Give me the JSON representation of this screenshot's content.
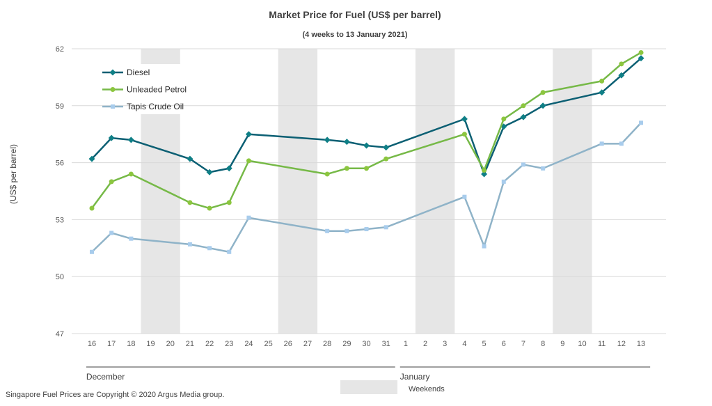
{
  "chart_data": {
    "type": "line",
    "title": "Market Price for Fuel (US$ per barrel)",
    "subtitle": "(4 weeks to 13 January 2021)",
    "ylabel": "(US$ per barrel)",
    "xlabel": "",
    "ylim": [
      47,
      62
    ],
    "yticks": [
      47,
      50,
      53,
      56,
      59,
      62
    ],
    "grid": true,
    "legend_position": "top-left",
    "categories": [
      "16",
      "17",
      "18",
      "19",
      "20",
      "21",
      "22",
      "23",
      "24",
      "25",
      "26",
      "27",
      "28",
      "29",
      "30",
      "31",
      "1",
      "2",
      "3",
      "4",
      "5",
      "6",
      "7",
      "8",
      "9",
      "10",
      "11",
      "12",
      "13"
    ],
    "month_groups": [
      {
        "label": "December",
        "from": 0,
        "to": 15
      },
      {
        "label": "January",
        "from": 16,
        "to": 28
      }
    ],
    "weekend_indices": [
      3,
      4,
      10,
      11,
      17,
      18,
      24,
      25
    ],
    "series": [
      {
        "name": "Diesel",
        "color": "#0b5f73",
        "marker": "diamond",
        "points": [
          [
            0,
            56.2
          ],
          [
            1,
            57.3
          ],
          [
            2,
            57.2
          ],
          [
            5,
            56.2
          ],
          [
            6,
            55.5
          ],
          [
            7,
            55.7
          ],
          [
            8,
            57.5
          ],
          [
            12,
            57.2
          ],
          [
            13,
            57.1
          ],
          [
            14,
            56.9
          ],
          [
            15,
            56.8
          ],
          [
            19,
            58.3
          ],
          [
            20,
            55.4
          ],
          [
            21,
            57.9
          ],
          [
            22,
            58.4
          ],
          [
            23,
            59.0
          ],
          [
            26,
            59.7
          ],
          [
            27,
            60.6
          ],
          [
            28,
            61.5
          ]
        ]
      },
      {
        "name": "Unleaded Petrol",
        "color": "#76b947",
        "marker": "circle",
        "points": [
          [
            0,
            53.6
          ],
          [
            1,
            55.0
          ],
          [
            2,
            55.4
          ],
          [
            5,
            53.9
          ],
          [
            6,
            53.6
          ],
          [
            7,
            53.9
          ],
          [
            8,
            56.1
          ],
          [
            12,
            55.4
          ],
          [
            13,
            55.7
          ],
          [
            14,
            55.7
          ],
          [
            15,
            56.2
          ],
          [
            19,
            57.5
          ],
          [
            20,
            55.6
          ],
          [
            21,
            58.3
          ],
          [
            22,
            59.0
          ],
          [
            23,
            59.7
          ],
          [
            26,
            60.3
          ],
          [
            27,
            61.2
          ],
          [
            28,
            61.8
          ]
        ]
      },
      {
        "name": "Tapis Crude Oil",
        "color": "#8fb3c8",
        "marker": "square",
        "points": [
          [
            0,
            51.3
          ],
          [
            1,
            52.3
          ],
          [
            2,
            52.0
          ],
          [
            5,
            51.7
          ],
          [
            6,
            51.5
          ],
          [
            7,
            51.3
          ],
          [
            8,
            53.1
          ],
          [
            12,
            52.4
          ],
          [
            13,
            52.4
          ],
          [
            14,
            52.5
          ],
          [
            15,
            52.6
          ],
          [
            19,
            54.2
          ],
          [
            20,
            51.6
          ],
          [
            21,
            55.0
          ],
          [
            22,
            55.9
          ],
          [
            23,
            55.7
          ],
          [
            26,
            57.0
          ],
          [
            27,
            57.0
          ],
          [
            28,
            58.1
          ]
        ]
      }
    ],
    "weekend_legend_label": "Weekends",
    "footnote": "Singapore Fuel Prices are Copyright © 2020 Argus Media group."
  }
}
